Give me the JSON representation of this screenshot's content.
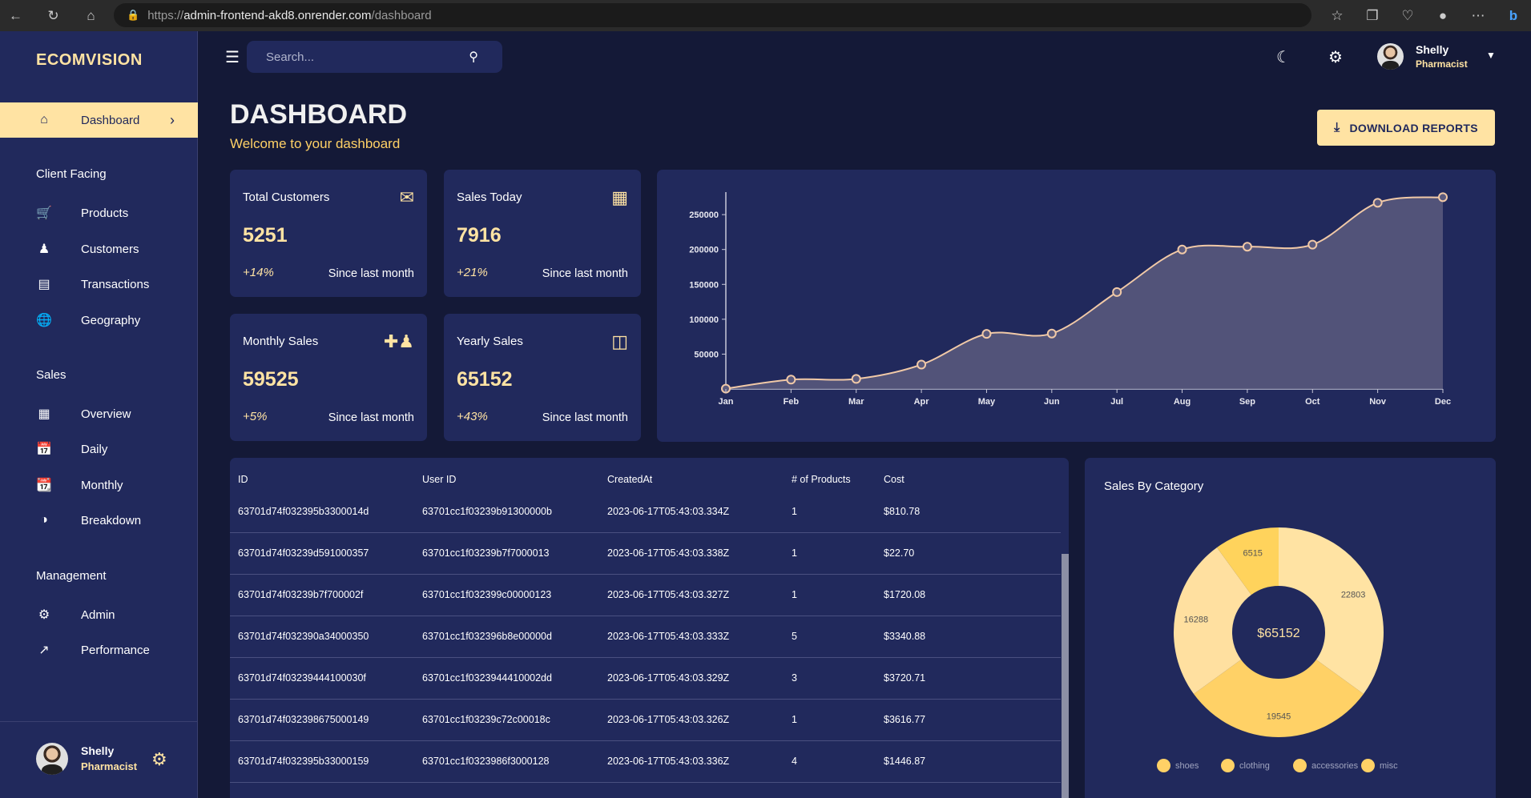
{
  "browser": {
    "url_prefix": "https://",
    "url_host": "admin-frontend-akd8.onrender.com",
    "url_path": "/dashboard"
  },
  "sidebar": {
    "logo": "ECOMVISION",
    "active": {
      "label": "Dashboard",
      "icon": "home-icon"
    },
    "sections": [
      {
        "title": "Client Facing",
        "items": [
          {
            "label": "Products",
            "icon": "cart-icon"
          },
          {
            "label": "Customers",
            "icon": "groups-icon"
          },
          {
            "label": "Transactions",
            "icon": "receipt-icon"
          },
          {
            "label": "Geography",
            "icon": "globe-icon"
          }
        ]
      },
      {
        "title": "Sales",
        "items": [
          {
            "label": "Overview",
            "icon": "point-of-sale-icon"
          },
          {
            "label": "Daily",
            "icon": "calendar-today-icon"
          },
          {
            "label": "Monthly",
            "icon": "calendar-month-icon"
          },
          {
            "label": "Breakdown",
            "icon": "pie-chart-icon"
          }
        ]
      },
      {
        "title": "Management",
        "items": [
          {
            "label": "Admin",
            "icon": "admin-icon"
          },
          {
            "label": "Performance",
            "icon": "trending-up-icon"
          }
        ]
      }
    ],
    "user": {
      "name": "Shelly",
      "role": "Pharmacist"
    }
  },
  "topbar": {
    "search_placeholder": "Search...",
    "user": {
      "name": "Shelly",
      "role": "Pharmacist"
    }
  },
  "header": {
    "title": "DASHBOARD",
    "subtitle": "Welcome to your dashboard",
    "download_label": "DOWNLOAD REPORTS"
  },
  "stats": [
    {
      "title": "Total Customers",
      "value": "5251",
      "increase": "+14%",
      "description": "Since last month",
      "icon": "email-icon"
    },
    {
      "title": "Sales Today",
      "value": "7916",
      "increase": "+21%",
      "description": "Since last month",
      "icon": "cash-register-icon"
    },
    {
      "title": "Monthly Sales",
      "value": "59525",
      "increase": "+5%",
      "description": "Since last month",
      "icon": "person-add-icon"
    },
    {
      "title": "Yearly Sales",
      "value": "65152",
      "increase": "+43%",
      "description": "Since last month",
      "icon": "traffic-icon"
    }
  ],
  "table": {
    "columns": [
      "ID",
      "User ID",
      "CreatedAt",
      "# of Products",
      "Cost"
    ],
    "rows": [
      [
        "63701d74f032395b3300014d",
        "63701cc1f03239b91300000b",
        "2023-06-17T05:43:03.334Z",
        "1",
        "$810.78"
      ],
      [
        "63701d74f03239d591000357",
        "63701cc1f03239b7f7000013",
        "2023-06-17T05:43:03.338Z",
        "1",
        "$22.70"
      ],
      [
        "63701d74f03239b7f700002f",
        "63701cc1f032399c00000123",
        "2023-06-17T05:43:03.327Z",
        "1",
        "$1720.08"
      ],
      [
        "63701d74f032390a34000350",
        "63701cc1f032396b8e00000d",
        "2023-06-17T05:43:03.333Z",
        "5",
        "$3340.88"
      ],
      [
        "63701d74f03239444100030f",
        "63701cc1f0323944410002dd",
        "2023-06-17T05:43:03.329Z",
        "3",
        "$3720.71"
      ],
      [
        "63701d74f032398675000149",
        "63701cc1f03239c72c00018c",
        "2023-06-17T05:43:03.326Z",
        "1",
        "$3616.77"
      ],
      [
        "63701d74f032395b33000159",
        "63701cc1f0323986f3000128",
        "2023-06-17T05:43:03.336Z",
        "4",
        "$1446.87"
      ]
    ]
  },
  "pie": {
    "title": "Sales By Category",
    "total_label": "$65152"
  },
  "chart_data": [
    {
      "type": "area",
      "categories": [
        "Jan",
        "Feb",
        "Mar",
        "Apr",
        "May",
        "Jun",
        "Jul",
        "Aug",
        "Sep",
        "Oct",
        "Nov",
        "Dec"
      ],
      "values": [
        500,
        13500,
        14500,
        35000,
        79000,
        79500,
        139000,
        200000,
        204000,
        207000,
        267000,
        275000
      ],
      "yticks": [
        50000,
        100000,
        150000,
        200000,
        250000
      ],
      "ylim": [
        0,
        280000
      ],
      "colors": {
        "line": "#f1c9a7",
        "fill": "#5b5a7e"
      }
    },
    {
      "type": "pie",
      "categories": [
        "shoes",
        "clothing",
        "accessories",
        "misc"
      ],
      "values": [
        22803,
        19545,
        16288,
        6515
      ],
      "colors": [
        "#ffe3a3",
        "#ffd166",
        "#ffe0a0",
        "#ffd35c"
      ]
    }
  ]
}
